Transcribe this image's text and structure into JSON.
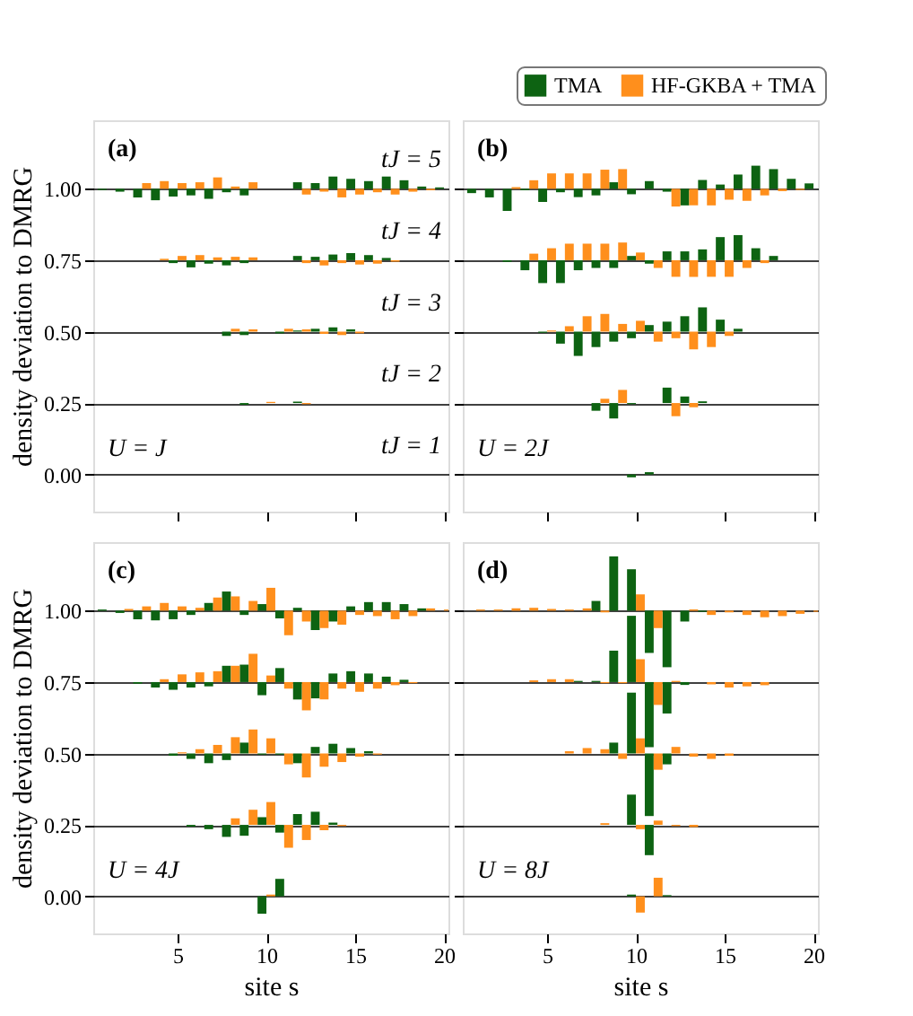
{
  "chart_data": [
    {
      "type": "bar",
      "annotations": [
        "(a)",
        "U = J",
        "tJ = 5",
        "tJ = 4",
        "tJ = 3",
        "tJ = 2",
        "tJ = 1"
      ],
      "ylabel": "density deviation to DMRG",
      "x": [
        1,
        2,
        3,
        4,
        5,
        6,
        7,
        8,
        9,
        10,
        11,
        12,
        13,
        14,
        15,
        16,
        17,
        18,
        19,
        20
      ],
      "xlim": [
        0.25,
        20.25
      ],
      "xticks": [
        5,
        10,
        15,
        20
      ],
      "ylim": [
        -0.13,
        1.24
      ],
      "yticks": [
        {
          "value": 0,
          "label": "0.00"
        },
        {
          "value": 0.25,
          "label": "0.25"
        },
        {
          "value": 0.5,
          "label": "0.50"
        },
        {
          "value": 0.75,
          "label": "0.75"
        },
        {
          "value": 1.0,
          "label": "1.00"
        }
      ],
      "grid": "y",
      "tick_labels": "y",
      "legend": "top right",
      "series": [
        {
          "name": "TMA",
          "color": "#0d6312",
          "base": [
            1,
            1,
            1,
            1,
            1,
            1,
            1,
            1,
            1,
            null,
            null,
            1,
            1,
            1,
            1,
            1,
            1,
            1,
            1,
            1
          ],
          "values": [
            -0.004,
            -0.01,
            -0.03,
            -0.04,
            -0.027,
            -0.023,
            -0.035,
            -0.012,
            -0.023,
            null,
            null,
            0.023,
            0.02,
            0.043,
            0.035,
            0.027,
            0.043,
            0.03,
            0.008,
            0.005
          ]
        },
        {
          "name": "HF-GKBA + TMA",
          "color": "#ff8f1c",
          "base": [
            null,
            null,
            1,
            1,
            1,
            1,
            1,
            1,
            1,
            null,
            null,
            1,
            1,
            1,
            1,
            1,
            1,
            1,
            1,
            null
          ],
          "values": [
            null,
            null,
            0.02,
            0.027,
            0.02,
            0.023,
            0.04,
            0.008,
            0.023,
            null,
            null,
            -0.02,
            -0.01,
            -0.03,
            -0.02,
            -0.012,
            -0.02,
            -0.01,
            -0.005,
            null
          ]
        },
        {
          "color": "#0d6312",
          "base": [
            null,
            null,
            null,
            null,
            0.75,
            0.75,
            0.75,
            0.75,
            0.75,
            null,
            null,
            0.75,
            0.75,
            0.75,
            0.75,
            0.75,
            0.75,
            null,
            null,
            null
          ],
          "values": [
            null,
            null,
            null,
            null,
            -0.01,
            -0.025,
            -0.012,
            -0.018,
            -0.01,
            null,
            null,
            0.015,
            0.012,
            0.02,
            0.025,
            0.018,
            0.008,
            null,
            null,
            null
          ]
        },
        {
          "color": "#ff8f1c",
          "base": [
            null,
            null,
            null,
            0.75,
            0.75,
            0.75,
            0.75,
            0.75,
            0.75,
            null,
            null,
            0.75,
            0.75,
            0.75,
            0.75,
            0.75,
            0.75,
            null,
            null,
            null
          ],
          "values": [
            null,
            null,
            null,
            0.005,
            0.015,
            0.018,
            0.01,
            0.012,
            0.01,
            null,
            null,
            -0.01,
            -0.018,
            -0.01,
            -0.015,
            -0.012,
            -0.005,
            null,
            null,
            null
          ]
        },
        {
          "color": "#0d6312",
          "base": [
            null,
            null,
            null,
            null,
            null,
            null,
            null,
            0.5,
            0.5,
            null,
            0.5,
            0.5,
            0.5,
            0.5,
            0.5,
            null,
            null,
            null,
            null,
            null
          ],
          "values": [
            null,
            null,
            null,
            null,
            null,
            null,
            null,
            -0.015,
            -0.012,
            null,
            -0.006,
            0.004,
            0.01,
            0.015,
            0.008,
            null,
            null,
            null,
            null,
            null
          ]
        },
        {
          "color": "#ff8f1c",
          "base": [
            null,
            null,
            null,
            null,
            null,
            null,
            null,
            0.5,
            0.5,
            null,
            0.5,
            0.5,
            0.5,
            0.5,
            0.5,
            null,
            null,
            null,
            null,
            null
          ],
          "values": [
            null,
            null,
            null,
            null,
            null,
            null,
            null,
            0.01,
            0.008,
            null,
            0.01,
            0.008,
            -0.008,
            -0.012,
            -0.006,
            null,
            null,
            null,
            null,
            null
          ]
        },
        {
          "color": "#0d6312",
          "base": [
            null,
            null,
            null,
            null,
            null,
            null,
            null,
            null,
            0.25,
            null,
            null,
            0.25,
            null,
            null,
            null,
            null,
            null,
            null,
            null,
            null
          ],
          "values": [
            null,
            null,
            null,
            null,
            null,
            null,
            null,
            null,
            -0.006,
            null,
            null,
            0.005,
            null,
            null,
            null,
            null,
            null,
            null,
            null,
            null
          ]
        },
        {
          "color": "#ff8f1c",
          "base": [
            null,
            null,
            null,
            null,
            null,
            null,
            null,
            null,
            null,
            0.25,
            null,
            0.25,
            null,
            null,
            null,
            null,
            null,
            null,
            null,
            null
          ],
          "values": [
            null,
            null,
            null,
            null,
            null,
            null,
            null,
            null,
            null,
            0.004,
            null,
            -0.004,
            null,
            null,
            null,
            null,
            null,
            null,
            null,
            null
          ]
        }
      ]
    },
    {
      "type": "bar",
      "annotations": [
        "(b)",
        "U = 2J"
      ],
      "x": [
        1,
        2,
        3,
        4,
        5,
        6,
        7,
        8,
        9,
        10,
        11,
        12,
        13,
        14,
        15,
        16,
        17,
        18,
        19,
        20
      ],
      "xlim": [
        0.25,
        20.25
      ],
      "xticks": [
        5,
        10,
        15,
        20
      ],
      "ylim": [
        -0.13,
        1.24
      ],
      "yticks": [
        0,
        0.25,
        0.5,
        0.75,
        1.0
      ],
      "grid": "y",
      "tick_labels": false,
      "series": [
        {
          "color": "#0d6312",
          "base": [
            1,
            1,
            1,
            1,
            1,
            1,
            1,
            1,
            1,
            1,
            1,
            1,
            1,
            1,
            1,
            1,
            1,
            1,
            1,
            1
          ],
          "values": [
            -0.015,
            -0.03,
            -0.077,
            -0.005,
            -0.046,
            -0.012,
            -0.029,
            -0.023,
            0.023,
            -0.019,
            0.027,
            -0.01,
            -0.058,
            0.031,
            0.015,
            0.05,
            0.081,
            0.069,
            0.035,
            0.019
          ]
        },
        {
          "color": "#ff8f1c",
          "base": [
            null,
            null,
            1,
            1,
            1,
            1,
            1,
            1,
            1,
            null,
            null,
            1,
            1,
            1,
            1,
            1,
            1,
            1,
            1,
            null
          ],
          "values": [
            null,
            null,
            0.006,
            0.03,
            0.054,
            0.054,
            0.054,
            0.067,
            0.069,
            null,
            null,
            -0.062,
            -0.058,
            -0.058,
            -0.038,
            -0.042,
            -0.023,
            -0.008,
            -0.004,
            null
          ]
        },
        {
          "color": "#0d6312",
          "base": [
            null,
            null,
            0.75,
            0.75,
            0.75,
            0.75,
            0.75,
            0.75,
            0.75,
            0.75,
            0.75,
            0.75,
            0.75,
            0.75,
            0.75,
            0.75,
            0.75,
            0.75,
            null,
            null
          ],
          "values": [
            null,
            null,
            -0.006,
            -0.035,
            -0.08,
            -0.08,
            -0.035,
            -0.027,
            -0.027,
            0.015,
            -0.012,
            0.031,
            0.031,
            0.038,
            0.081,
            0.088,
            0.042,
            0.015,
            null,
            null
          ]
        },
        {
          "color": "#ff8f1c",
          "base": [
            null,
            null,
            null,
            0.75,
            0.75,
            0.75,
            0.75,
            0.75,
            0.75,
            0.75,
            0.75,
            0.75,
            0.75,
            0.75,
            0.75,
            0.75,
            0.75,
            null,
            null,
            null
          ],
          "values": [
            null,
            null,
            null,
            0.023,
            0.042,
            0.058,
            0.058,
            0.058,
            0.062,
            0.027,
            -0.027,
            -0.058,
            -0.058,
            -0.058,
            -0.058,
            -0.027,
            -0.01,
            null,
            null,
            null
          ]
        },
        {
          "color": "#0d6312",
          "base": [
            null,
            null,
            null,
            null,
            0.5,
            0.5,
            0.5,
            0.5,
            0.5,
            0.5,
            0.5,
            0.5,
            0.5,
            0.5,
            0.5,
            0.5,
            null,
            null,
            null,
            null
          ],
          "values": [
            null,
            null,
            null,
            null,
            -0.004,
            -0.042,
            -0.085,
            -0.054,
            -0.035,
            -0.023,
            0.023,
            0.035,
            0.054,
            0.085,
            0.042,
            0.01,
            null,
            null,
            null,
            null
          ]
        },
        {
          "color": "#ff8f1c",
          "base": [
            null,
            null,
            null,
            null,
            0.5,
            0.5,
            0.5,
            0.5,
            0.5,
            0.5,
            0.5,
            0.5,
            0.5,
            0.5,
            0.5,
            null,
            null,
            null,
            null,
            null
          ],
          "values": [
            null,
            null,
            null,
            null,
            0.004,
            0.019,
            0.054,
            0.062,
            0.027,
            0.038,
            -0.035,
            -0.023,
            -0.062,
            -0.054,
            -0.015,
            null,
            null,
            null,
            null,
            null
          ]
        },
        {
          "color": "#0d6312",
          "base": [
            null,
            null,
            null,
            null,
            null,
            null,
            null,
            0.25,
            0.25,
            0.25,
            null,
            0.25,
            0.25,
            0.25,
            null,
            null,
            null,
            null,
            null,
            null
          ],
          "values": [
            null,
            null,
            null,
            null,
            null,
            null,
            null,
            -0.027,
            -0.054,
            -0.004,
            null,
            0.054,
            0.023,
            0.006,
            null,
            null,
            null,
            null,
            null,
            null
          ]
        },
        {
          "color": "#ff8f1c",
          "base": [
            null,
            null,
            null,
            null,
            null,
            null,
            null,
            0.25,
            0.25,
            null,
            null,
            0.25,
            0.25,
            null,
            null,
            null,
            null,
            null,
            null,
            null
          ],
          "values": [
            null,
            null,
            null,
            null,
            null,
            null,
            null,
            0.015,
            0.046,
            null,
            null,
            -0.046,
            -0.015,
            null,
            null,
            null,
            null,
            null,
            null,
            null
          ]
        },
        {
          "color": "#0d6312",
          "base": [
            null,
            null,
            null,
            null,
            null,
            null,
            null,
            null,
            null,
            0,
            0,
            null,
            null,
            null,
            null,
            null,
            null,
            null,
            null,
            null
          ],
          "values": [
            null,
            null,
            null,
            null,
            null,
            null,
            null,
            null,
            null,
            -0.01,
            0.008,
            null,
            null,
            null,
            null,
            null,
            null,
            null,
            null,
            null
          ]
        }
      ]
    },
    {
      "type": "bar",
      "annotations": [
        "(c)",
        "U = 4J"
      ],
      "ylabel": "density deviation to DMRG",
      "xlabel": "site s",
      "x": [
        1,
        2,
        3,
        4,
        5,
        6,
        7,
        8,
        9,
        10,
        11,
        12,
        13,
        14,
        15,
        16,
        17,
        18,
        19,
        20
      ],
      "xlim": [
        0.25,
        20.25
      ],
      "xticks": [
        5,
        10,
        15,
        20
      ],
      "ylim": [
        -0.13,
        1.24
      ],
      "yticks": [
        {
          "value": 0,
          "label": "0.00"
        },
        {
          "value": 0.25,
          "label": "0.25"
        },
        {
          "value": 0.5,
          "label": "0.50"
        },
        {
          "value": 0.75,
          "label": "0.75"
        },
        {
          "value": 1.0,
          "label": "1.00"
        }
      ],
      "grid": "y",
      "series": [
        {
          "color": "#0d6312",
          "base": [
            1,
            1,
            1,
            1,
            1,
            1,
            1,
            1,
            1,
            1,
            1,
            1,
            1,
            1,
            1,
            1,
            1,
            1,
            1,
            null
          ],
          "values": [
            0.004,
            -0.008,
            -0.03,
            -0.034,
            -0.03,
            -0.015,
            0.027,
            0.067,
            -0.015,
            0.023,
            -0.027,
            0.01,
            -0.068,
            -0.038,
            0.015,
            0.03,
            0.03,
            0.023,
            0.008,
            null
          ]
        },
        {
          "color": "#ff8f1c",
          "base": [
            null,
            1,
            1,
            1,
            1,
            1,
            1,
            1,
            1,
            1,
            1,
            1,
            1,
            1,
            1,
            1,
            1,
            1,
            1,
            1
          ],
          "values": [
            null,
            0.006,
            0.015,
            0.027,
            0.015,
            0.01,
            0.046,
            0.05,
            0.034,
            0.08,
            -0.086,
            -0.038,
            -0.061,
            -0.049,
            -0.015,
            -0.019,
            -0.03,
            -0.019,
            0.008,
            0.004
          ]
        },
        {
          "color": "#0d6312",
          "base": [
            null,
            null,
            0.75,
            0.75,
            0.75,
            0.75,
            0.75,
            0.75,
            0.75,
            0.75,
            0.75,
            0.75,
            0.75,
            0.75,
            0.75,
            0.75,
            0.75,
            0.75,
            null,
            null
          ],
          "values": [
            null,
            null,
            -0.006,
            -0.019,
            -0.027,
            -0.019,
            -0.015,
            0.057,
            0.061,
            -0.046,
            0.049,
            -0.061,
            -0.057,
            0.03,
            0.038,
            0.03,
            0.019,
            0.008,
            null,
            null
          ]
        },
        {
          "color": "#ff8f1c",
          "base": [
            null,
            null,
            null,
            0.75,
            0.75,
            0.75,
            0.75,
            0.75,
            0.75,
            0.75,
            0.75,
            0.75,
            0.75,
            0.75,
            0.75,
            0.75,
            0.75,
            0.75,
            null,
            null
          ],
          "values": [
            null,
            null,
            null,
            0.01,
            0.027,
            0.034,
            0.038,
            0.057,
            0.099,
            0.023,
            -0.023,
            -0.099,
            -0.061,
            -0.023,
            -0.034,
            -0.023,
            -0.011,
            -0.004,
            null,
            null
          ]
        },
        {
          "color": "#0d6312",
          "base": [
            null,
            null,
            null,
            null,
            0.5,
            0.5,
            0.5,
            0.5,
            0.5,
            0.5,
            0.5,
            0.5,
            0.5,
            0.5,
            0.5,
            0.5,
            null,
            null,
            null,
            null
          ],
          "values": [
            null,
            null,
            null,
            null,
            -0.008,
            -0.019,
            -0.034,
            -0.023,
            0.038,
            -0.004,
            -0.004,
            -0.034,
            0.023,
            0.034,
            0.019,
            0.008,
            null,
            null,
            null,
            null
          ]
        },
        {
          "color": "#ff8f1c",
          "base": [
            null,
            null,
            null,
            null,
            0.5,
            0.5,
            0.5,
            0.5,
            0.5,
            0.5,
            0.5,
            0.5,
            0.5,
            0.5,
            0.5,
            0.5,
            null,
            null,
            null,
            null
          ],
          "values": [
            null,
            null,
            null,
            null,
            0.004,
            0.015,
            0.03,
            0.057,
            0.084,
            0.053,
            -0.038,
            -0.084,
            -0.046,
            -0.03,
            -0.011,
            -0.004,
            null,
            null,
            null,
            null
          ]
        },
        {
          "color": "#0d6312",
          "base": [
            null,
            null,
            null,
            null,
            null,
            0.25,
            0.25,
            0.25,
            0.25,
            0.25,
            0.25,
            0.25,
            0.25,
            0.25,
            null,
            null,
            null,
            null,
            null,
            null
          ],
          "values": [
            null,
            null,
            null,
            null,
            null,
            -0.006,
            -0.015,
            -0.042,
            -0.038,
            0.027,
            -0.027,
            0.038,
            0.046,
            0.008,
            null,
            null,
            null,
            null,
            null,
            null
          ]
        },
        {
          "color": "#ff8f1c",
          "base": [
            null,
            null,
            null,
            null,
            null,
            null,
            null,
            0.25,
            0.25,
            0.25,
            0.25,
            0.25,
            0.25,
            0.25,
            null,
            null,
            null,
            null,
            null,
            null
          ],
          "values": [
            null,
            null,
            null,
            null,
            null,
            null,
            null,
            0.023,
            0.053,
            0.08,
            -0.08,
            -0.053,
            -0.019,
            -0.004,
            null,
            null,
            null,
            null,
            null,
            null
          ]
        },
        {
          "color": "#0d6312",
          "base": [
            null,
            null,
            null,
            null,
            null,
            null,
            null,
            null,
            null,
            0,
            0,
            null,
            null,
            null,
            null,
            null,
            null,
            null,
            null,
            null
          ],
          "values": [
            null,
            null,
            null,
            null,
            null,
            null,
            null,
            null,
            null,
            -0.061,
            0.061,
            null,
            null,
            null,
            null,
            null,
            null,
            null,
            null,
            null
          ]
        },
        {
          "color": "#ff8f1c",
          "base": [
            null,
            null,
            null,
            null,
            null,
            null,
            null,
            null,
            null,
            0,
            null,
            null,
            null,
            null,
            null,
            null,
            null,
            null,
            null,
            null
          ],
          "values": [
            null,
            null,
            null,
            null,
            null,
            null,
            null,
            null,
            null,
            0.006,
            null,
            null,
            null,
            null,
            null,
            null,
            null,
            null,
            null,
            null
          ]
        }
      ]
    },
    {
      "type": "bar",
      "annotations": [
        "(d)",
        "U = 8J"
      ],
      "xlabel": "site s",
      "x": [
        1,
        2,
        3,
        4,
        5,
        6,
        7,
        8,
        9,
        10,
        11,
        12,
        13,
        14,
        15,
        16,
        17,
        18,
        19,
        20
      ],
      "xlim": [
        0.25,
        20.25
      ],
      "xticks": [
        5,
        10,
        15,
        20
      ],
      "ylim": [
        -0.13,
        1.24
      ],
      "yticks": [
        0,
        0.25,
        0.5,
        0.75,
        1.0
      ],
      "grid": "y",
      "tick_labels": "x",
      "series": [
        {
          "color": "#0d6312",
          "base": [
            null,
            null,
            null,
            null,
            null,
            null,
            null,
            1,
            1,
            1,
            1,
            1,
            1,
            1,
            null,
            null,
            null,
            null,
            null,
            null
          ],
          "values": [
            null,
            null,
            null,
            null,
            null,
            null,
            null,
            0.034,
            0.19,
            0.145,
            -0.148,
            -0.198,
            -0.038,
            -0.004,
            null,
            null,
            null,
            null,
            null,
            null
          ]
        },
        {
          "color": "#ff8f1c",
          "base": [
            1,
            1,
            1,
            1,
            1,
            1,
            1,
            1,
            null,
            1,
            1,
            null,
            1,
            1,
            1,
            1,
            1,
            1,
            1,
            1
          ],
          "values": [
            0.004,
            0.004,
            0.008,
            0.01,
            0.006,
            0.004,
            0.008,
            -0.006,
            null,
            0.057,
            -0.061,
            null,
            0.004,
            -0.015,
            -0.006,
            -0.015,
            -0.023,
            -0.019,
            -0.011,
            -0.004
          ]
        },
        {
          "color": "#0d6312",
          "base": [
            null,
            null,
            null,
            null,
            null,
            null,
            0.75,
            0.75,
            0.75,
            0.75,
            0.75,
            0.75,
            0.75,
            null,
            null,
            null,
            null,
            null,
            null,
            null
          ],
          "values": [
            null,
            null,
            null,
            null,
            null,
            null,
            0.004,
            0.004,
            0.11,
            0.232,
            -0.228,
            -0.11,
            -0.01,
            null,
            null,
            null,
            null,
            null,
            null,
            null
          ]
        },
        {
          "color": "#ff8f1c",
          "base": [
            null,
            null,
            null,
            0.75,
            0.75,
            0.75,
            null,
            0.75,
            0.75,
            0.75,
            0.75,
            0.75,
            null,
            0.75,
            0.75,
            0.75,
            0.75,
            null,
            null,
            null
          ],
          "values": [
            null,
            null,
            null,
            0.006,
            0.01,
            0.01,
            null,
            -0.004,
            -0.004,
            0.08,
            -0.08,
            0.004,
            null,
            -0.008,
            -0.019,
            -0.015,
            -0.011,
            null,
            null,
            null
          ]
        },
        {
          "color": "#0d6312",
          "base": [
            null,
            null,
            null,
            null,
            null,
            null,
            null,
            null,
            0.5,
            0.5,
            0.5,
            0.5,
            null,
            null,
            null,
            null,
            null,
            null,
            null,
            null
          ],
          "values": [
            null,
            null,
            null,
            null,
            null,
            null,
            null,
            null,
            0.038,
            0.213,
            -0.219,
            -0.038,
            null,
            null,
            null,
            null,
            null,
            null,
            null,
            null
          ]
        },
        {
          "color": "#ff8f1c",
          "base": [
            null,
            null,
            null,
            null,
            null,
            0.5,
            0.5,
            0.5,
            0.5,
            0.5,
            0.5,
            0.5,
            0.5,
            0.5,
            0.5,
            null,
            null,
            null,
            null,
            null
          ],
          "values": [
            null,
            null,
            null,
            null,
            null,
            0.008,
            0.019,
            0.015,
            -0.019,
            0.053,
            -0.057,
            0.023,
            -0.011,
            -0.019,
            -0.008,
            null,
            null,
            null,
            null,
            null
          ]
        },
        {
          "color": "#0d6312",
          "base": [
            null,
            null,
            null,
            null,
            null,
            null,
            null,
            null,
            null,
            0.25,
            0.25,
            null,
            null,
            null,
            null,
            null,
            null,
            null,
            null,
            null
          ],
          "values": [
            null,
            null,
            null,
            null,
            null,
            null,
            null,
            null,
            null,
            0.106,
            -0.106,
            null,
            null,
            null,
            null,
            null,
            null,
            null,
            null,
            null
          ]
        },
        {
          "color": "#ff8f1c",
          "base": [
            null,
            null,
            null,
            null,
            null,
            null,
            null,
            0.25,
            null,
            0.25,
            0.25,
            0.25,
            0.25,
            null,
            null,
            null,
            null,
            null,
            null,
            null
          ],
          "values": [
            null,
            null,
            null,
            null,
            null,
            null,
            null,
            0.006,
            null,
            -0.015,
            0.015,
            -0.004,
            -0.008,
            null,
            null,
            null,
            null,
            null,
            null,
            null
          ]
        },
        {
          "color": "#0d6312",
          "base": [
            null,
            null,
            null,
            null,
            null,
            null,
            null,
            null,
            null,
            0,
            null,
            0,
            null,
            null,
            null,
            null,
            null,
            null,
            null,
            null
          ],
          "values": [
            null,
            null,
            null,
            null,
            null,
            null,
            null,
            null,
            null,
            0.006,
            null,
            0.004,
            null,
            null,
            null,
            null,
            null,
            null,
            null,
            null
          ]
        },
        {
          "color": "#ff8f1c",
          "base": [
            null,
            null,
            null,
            null,
            null,
            null,
            null,
            null,
            null,
            0,
            0,
            null,
            null,
            null,
            null,
            null,
            null,
            null,
            null,
            null
          ],
          "values": [
            null,
            null,
            null,
            null,
            null,
            null,
            null,
            null,
            null,
            -0.057,
            0.065,
            null,
            null,
            null,
            null,
            null,
            null,
            null,
            null,
            null
          ]
        }
      ]
    }
  ]
}
